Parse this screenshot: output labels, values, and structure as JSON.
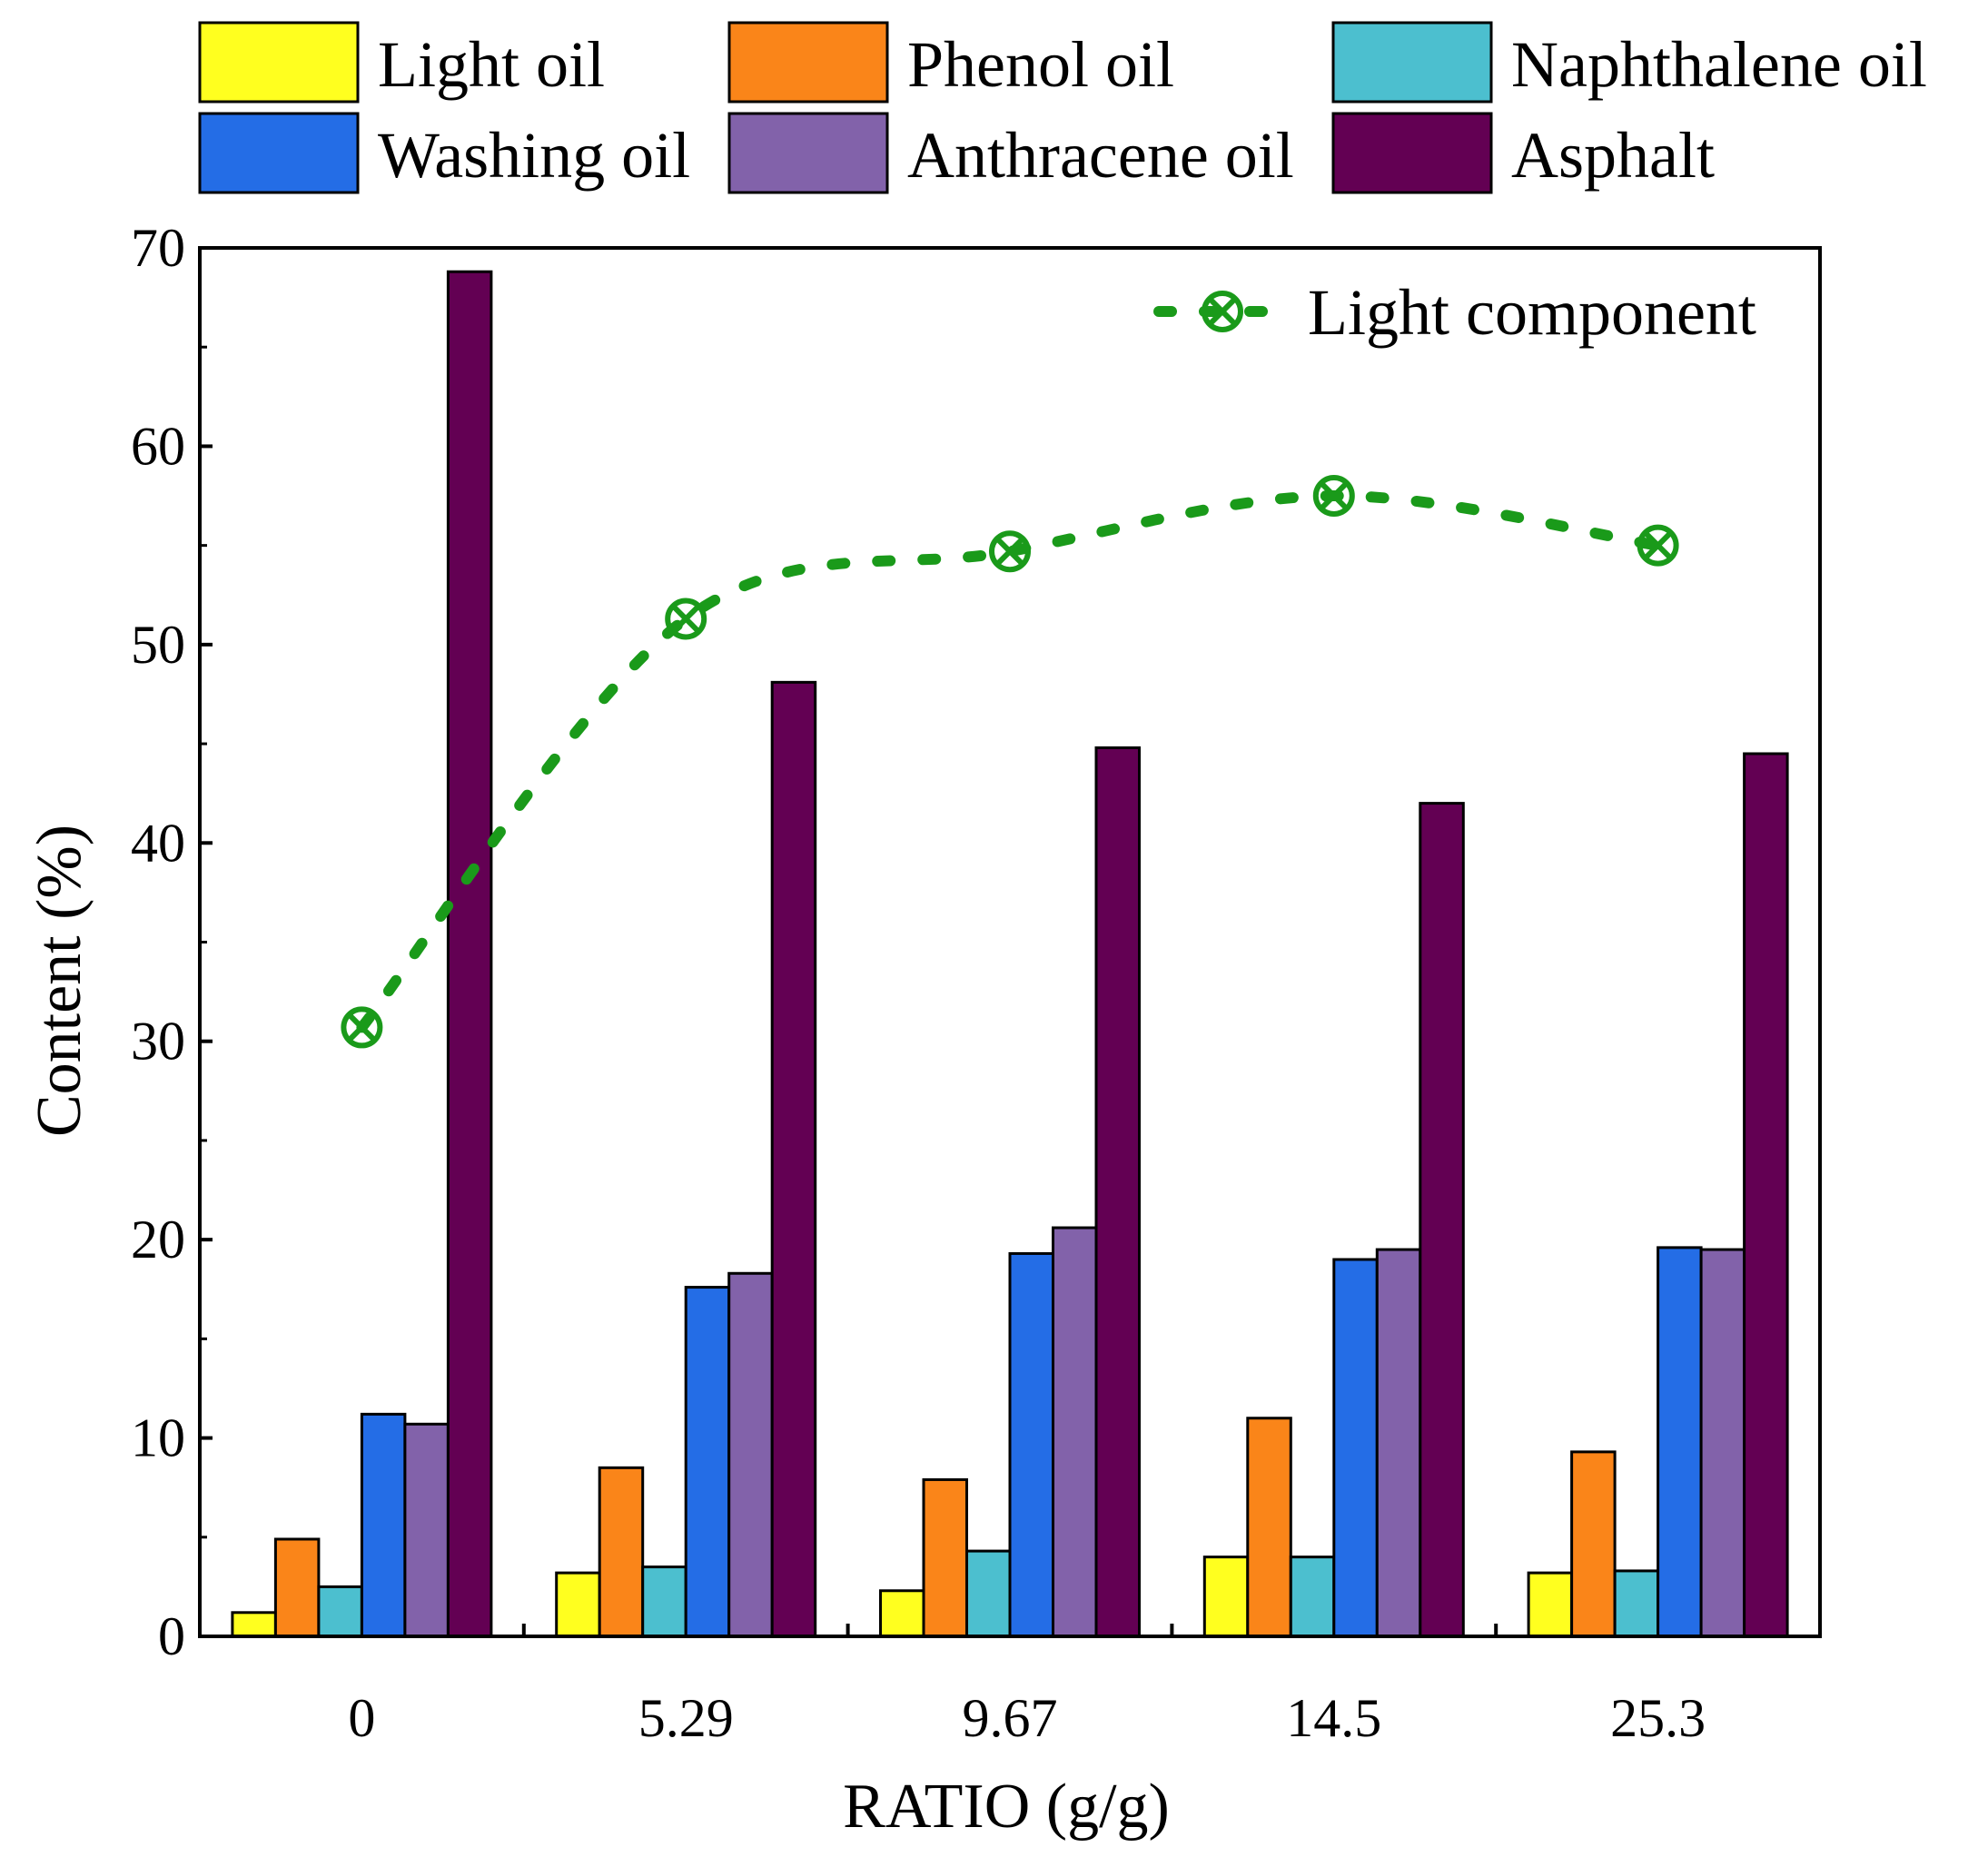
{
  "chart_data": {
    "type": "bar",
    "title": "",
    "xlabel": "RATIO (g/g)",
    "ylabel": "Content (%)",
    "ylim": [
      0,
      70
    ],
    "yticks": [
      0,
      10,
      20,
      30,
      40,
      50,
      60,
      70
    ],
    "grid": false,
    "categories": [
      "0",
      "5.29",
      "9.67",
      "14.5",
      "25.3"
    ],
    "series": [
      {
        "name": "Light oil",
        "color": "#ffff1f",
        "values": [
          1.2,
          3.2,
          2.3,
          4.0,
          3.2
        ]
      },
      {
        "name": "Phenol oil",
        "color": "#fa8519",
        "values": [
          4.9,
          8.5,
          7.9,
          11.0,
          9.3
        ]
      },
      {
        "name": "Naphthalene oil",
        "color": "#4cbfcf",
        "values": [
          2.5,
          3.5,
          4.3,
          4.0,
          3.3
        ]
      },
      {
        "name": "Washing oil",
        "color": "#246de6",
        "values": [
          11.2,
          17.6,
          19.3,
          19.0,
          19.6
        ]
      },
      {
        "name": "Anthracene oil",
        "color": "#8262aa",
        "values": [
          10.7,
          18.3,
          20.6,
          19.5,
          19.5
        ]
      },
      {
        "name": "Asphalt",
        "color": "#630053",
        "values": [
          68.8,
          48.1,
          44.8,
          42.0,
          44.5
        ]
      }
    ],
    "line_series": {
      "name": "Light component",
      "color": "#1a9a1a",
      "marker": "circle-x",
      "values": [
        30.7,
        51.3,
        54.7,
        57.5,
        55.0
      ],
      "legend_position": "top-right"
    },
    "legend_position": "top-outside"
  }
}
